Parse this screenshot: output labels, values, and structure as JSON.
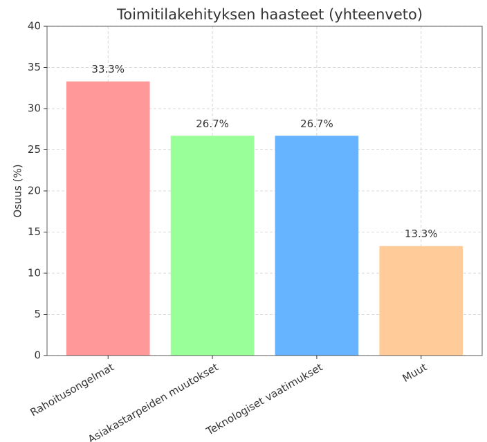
{
  "chart_data": {
    "type": "bar",
    "title": "Toimitilakehityksen haasteet (yhteenveto)",
    "y_label": "Osuus (%)",
    "categories": [
      "Rahoitusongelmat",
      "Asiakastarpeiden muutokset",
      "Teknologiset vaatimukset",
      "Muut"
    ],
    "values": [
      33.3,
      26.7,
      26.7,
      13.3
    ],
    "value_labels": [
      "33.3%",
      "26.7%",
      "26.7%",
      "13.3%"
    ],
    "colors": [
      "#ff9999",
      "#99ff99",
      "#66b3ff",
      "#ffcc99"
    ],
    "ylim": [
      0,
      40
    ],
    "yticks": [
      0,
      5,
      10,
      15,
      20,
      25,
      30,
      35,
      40
    ],
    "grid": true
  }
}
